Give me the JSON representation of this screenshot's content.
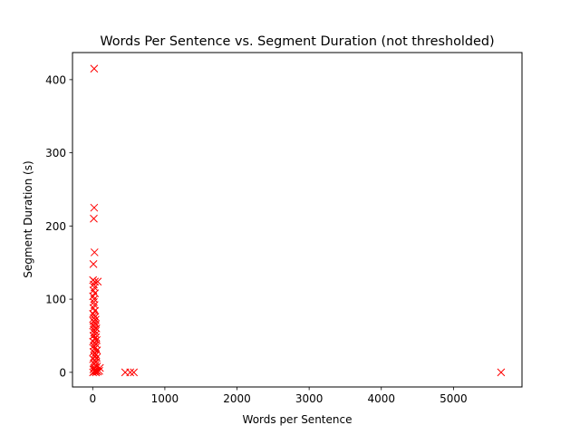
{
  "chart_data": {
    "type": "scatter",
    "title": "Words Per Sentence vs. Segment Duration (not thresholded)",
    "xlabel": "Words per Sentence",
    "ylabel": "Segment Duration (s)",
    "xlim": [
      -280,
      5950
    ],
    "ylim": [
      -20,
      437
    ],
    "xticks": [
      0,
      1000,
      2000,
      3000,
      4000,
      5000
    ],
    "yticks": [
      0,
      100,
      200,
      300,
      400
    ],
    "marker": "x",
    "color": "#ff0000",
    "grid": false,
    "series": [
      {
        "points": [
          [
            20,
            415
          ],
          [
            20,
            225
          ],
          [
            15,
            210
          ],
          [
            25,
            164
          ],
          [
            10,
            148
          ],
          [
            5,
            126
          ],
          [
            30,
            124
          ],
          [
            70,
            124
          ],
          [
            15,
            120
          ],
          [
            25,
            116
          ],
          [
            10,
            112
          ],
          [
            30,
            108
          ],
          [
            5,
            104
          ],
          [
            20,
            100
          ],
          [
            15,
            96
          ],
          [
            25,
            92
          ],
          [
            10,
            88
          ],
          [
            30,
            84
          ],
          [
            5,
            80
          ],
          [
            20,
            78
          ],
          [
            35,
            76
          ],
          [
            15,
            74
          ],
          [
            40,
            72
          ],
          [
            10,
            70
          ],
          [
            25,
            68
          ],
          [
            45,
            66
          ],
          [
            5,
            64
          ],
          [
            30,
            62
          ],
          [
            50,
            60
          ],
          [
            15,
            58
          ],
          [
            35,
            56
          ],
          [
            20,
            54
          ],
          [
            40,
            52
          ],
          [
            10,
            50
          ],
          [
            45,
            48
          ],
          [
            25,
            46
          ],
          [
            55,
            44
          ],
          [
            5,
            42
          ],
          [
            30,
            40
          ],
          [
            50,
            38
          ],
          [
            15,
            36
          ],
          [
            40,
            34
          ],
          [
            20,
            32
          ],
          [
            60,
            30
          ],
          [
            10,
            28
          ],
          [
            35,
            26
          ],
          [
            45,
            24
          ],
          [
            25,
            22
          ],
          [
            55,
            20
          ],
          [
            5,
            18
          ],
          [
            30,
            16
          ],
          [
            50,
            14
          ],
          [
            15,
            12
          ],
          [
            40,
            10
          ],
          [
            60,
            8
          ],
          [
            20,
            6
          ],
          [
            100,
            6
          ],
          [
            10,
            4
          ],
          [
            35,
            3
          ],
          [
            50,
            2
          ],
          [
            25,
            1
          ],
          [
            5,
            0
          ],
          [
            45,
            0
          ],
          [
            70,
            1
          ],
          [
            90,
            2
          ],
          [
            450,
            0
          ],
          [
            520,
            0
          ],
          [
            570,
            0
          ],
          [
            5660,
            0
          ]
        ]
      }
    ]
  }
}
